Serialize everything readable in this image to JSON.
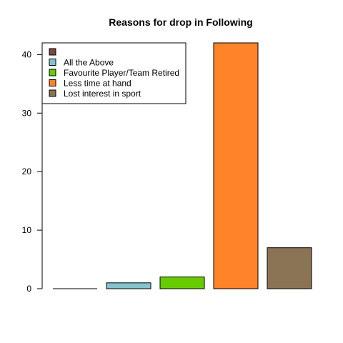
{
  "chart_data": {
    "type": "bar",
    "title": "Reasons for drop in Following",
    "xlabel": "",
    "ylabel": "",
    "categories": [
      "",
      "All the Above",
      "Favourite Player/Team Retired",
      "Less time at hand",
      "Lost interest in sport"
    ],
    "values": [
      0,
      1,
      2,
      42,
      7
    ],
    "colors": [
      "#7a4a3a",
      "#86c3cc",
      "#66cc00",
      "#ff8329",
      "#8b7355"
    ],
    "ylim": [
      0,
      42
    ],
    "yticks": [
      0,
      10,
      20,
      30,
      40
    ],
    "grid": false,
    "legend_position": "top-left"
  }
}
